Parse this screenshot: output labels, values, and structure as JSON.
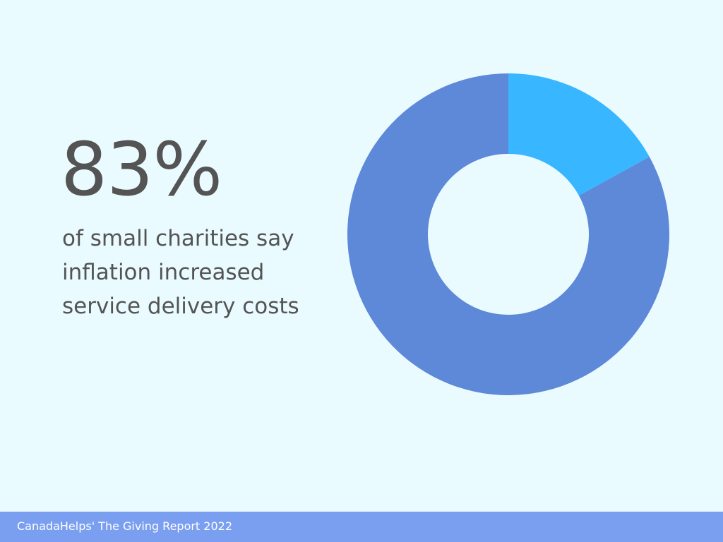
{
  "headline": {
    "value": "83%",
    "caption_lines": [
      "of small charities say",
      "inflation increased",
      "service delivery costs"
    ]
  },
  "footer": {
    "source": "CanadaHelps' The Giving Report 2022"
  },
  "colors": {
    "background": "#eafbff",
    "main_segment": "#5e88d8",
    "remainder_segment": "#38b6ff",
    "footer_bar": "#7b9ff0",
    "text": "#545454"
  },
  "chart_data": {
    "type": "pie",
    "donut": true,
    "values": [
      83,
      17
    ],
    "colors": [
      "#5e88d8",
      "#38b6ff"
    ],
    "start_angle_deg": 0,
    "direction": "counterclockwise",
    "legend": false
  }
}
